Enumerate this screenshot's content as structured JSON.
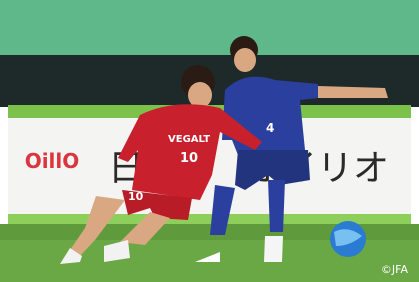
{
  "banner": {
    "logo": "OillO",
    "text_left": "日",
    "text_right": "オイリオ"
  },
  "red_player": {
    "sponsor": "VEGALT",
    "number": "10",
    "shorts_number": "10"
  },
  "blue_player": {
    "number": "4"
  },
  "credit": "©JFA"
}
